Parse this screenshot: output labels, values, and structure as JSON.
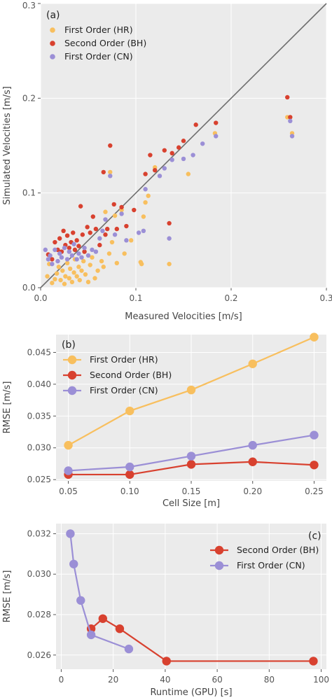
{
  "colors": {
    "hr": "#f8bf5e",
    "bh": "#d8412f",
    "cn": "#9b8fd6",
    "bg": "#ebebeb",
    "grid": "#ffffff",
    "diag": "#6e6e6e"
  },
  "chart_data": [
    {
      "type": "scatter",
      "panel_label": "(a)",
      "xlabel": "Measured Velocities [m/s]",
      "ylabel": "Simulated Velocities [m/s]",
      "xlim": [
        0,
        0.3
      ],
      "ylim": [
        0,
        0.3
      ],
      "xticks": [
        "0.0",
        "0.1",
        "0.2",
        "0.3"
      ],
      "yticks": [
        "0.0",
        "0.1",
        "0.2",
        "0.3"
      ],
      "xtick_values": [
        0,
        0.1,
        0.2,
        0.3
      ],
      "ytick_values": [
        0,
        0.1,
        0.2,
        0.3
      ],
      "reference_line": "y = x",
      "legend_position": "top-left",
      "series": [
        {
          "name": "First Order (HR)",
          "points": [
            [
              0.007,
              0.012
            ],
            [
              0.009,
              0.025
            ],
            [
              0.012,
              0.005
            ],
            [
              0.015,
              0.009
            ],
            [
              0.017,
              0.015
            ],
            [
              0.019,
              0.022
            ],
            [
              0.021,
              0.008
            ],
            [
              0.023,
              0.018
            ],
            [
              0.025,
              0.004
            ],
            [
              0.026,
              0.012
            ],
            [
              0.028,
              0.026
            ],
            [
              0.03,
              0.01
            ],
            [
              0.031,
              0.02
            ],
            [
              0.033,
              0.006
            ],
            [
              0.035,
              0.016
            ],
            [
              0.036,
              0.03
            ],
            [
              0.038,
              0.012
            ],
            [
              0.04,
              0.022
            ],
            [
              0.041,
              0.008
            ],
            [
              0.043,
              0.018
            ],
            [
              0.045,
              0.028
            ],
            [
              0.047,
              0.014
            ],
            [
              0.05,
              0.006
            ],
            [
              0.052,
              0.024
            ],
            [
              0.054,
              0.032
            ],
            [
              0.057,
              0.01
            ],
            [
              0.06,
              0.018
            ],
            [
              0.064,
              0.028
            ],
            [
              0.066,
              0.022
            ],
            [
              0.068,
              0.08
            ],
            [
              0.072,
              0.036
            ],
            [
              0.073,
              0.122
            ],
            [
              0.075,
              0.048
            ],
            [
              0.078,
              0.076
            ],
            [
              0.08,
              0.026
            ],
            [
              0.085,
              0.082
            ],
            [
              0.088,
              0.036
            ],
            [
              0.095,
              0.05
            ],
            [
              0.105,
              0.027
            ],
            [
              0.106,
              0.025
            ],
            [
              0.108,
              0.075
            ],
            [
              0.11,
              0.09
            ],
            [
              0.113,
              0.097
            ],
            [
              0.12,
              0.127
            ],
            [
              0.135,
              0.025
            ],
            [
              0.155,
              0.12
            ],
            [
              0.183,
              0.163
            ],
            [
              0.259,
              0.18
            ],
            [
              0.262,
              0.18
            ],
            [
              0.264,
              0.163
            ]
          ]
        },
        {
          "name": "Second Order (BH)",
          "points": [
            [
              0.008,
              0.035
            ],
            [
              0.012,
              0.03
            ],
            [
              0.015,
              0.048
            ],
            [
              0.018,
              0.04
            ],
            [
              0.02,
              0.052
            ],
            [
              0.022,
              0.038
            ],
            [
              0.024,
              0.06
            ],
            [
              0.026,
              0.045
            ],
            [
              0.028,
              0.055
            ],
            [
              0.03,
              0.042
            ],
            [
              0.032,
              0.048
            ],
            [
              0.034,
              0.058
            ],
            [
              0.036,
              0.04
            ],
            [
              0.038,
              0.05
            ],
            [
              0.04,
              0.044
            ],
            [
              0.042,
              0.086
            ],
            [
              0.044,
              0.056
            ],
            [
              0.046,
              0.038
            ],
            [
              0.049,
              0.064
            ],
            [
              0.052,
              0.058
            ],
            [
              0.055,
              0.075
            ],
            [
              0.058,
              0.062
            ],
            [
              0.062,
              0.045
            ],
            [
              0.066,
              0.122
            ],
            [
              0.068,
              0.056
            ],
            [
              0.07,
              0.062
            ],
            [
              0.073,
              0.15
            ],
            [
              0.077,
              0.088
            ],
            [
              0.08,
              0.062
            ],
            [
              0.085,
              0.085
            ],
            [
              0.09,
              0.065
            ],
            [
              0.098,
              0.082
            ],
            [
              0.11,
              0.12
            ],
            [
              0.115,
              0.14
            ],
            [
              0.12,
              0.124
            ],
            [
              0.13,
              0.145
            ],
            [
              0.135,
              0.068
            ],
            [
              0.138,
              0.142
            ],
            [
              0.145,
              0.148
            ],
            [
              0.15,
              0.155
            ],
            [
              0.163,
              0.172
            ],
            [
              0.184,
              0.174
            ],
            [
              0.259,
              0.201
            ],
            [
              0.262,
              0.18
            ]
          ]
        },
        {
          "name": "First Order (CN)",
          "points": [
            [
              0.005,
              0.04
            ],
            [
              0.008,
              0.03
            ],
            [
              0.01,
              0.034
            ],
            [
              0.012,
              0.025
            ],
            [
              0.015,
              0.04
            ],
            [
              0.018,
              0.028
            ],
            [
              0.02,
              0.036
            ],
            [
              0.022,
              0.032
            ],
            [
              0.025,
              0.042
            ],
            [
              0.028,
              0.03
            ],
            [
              0.03,
              0.038
            ],
            [
              0.033,
              0.034
            ],
            [
              0.035,
              0.046
            ],
            [
              0.038,
              0.03
            ],
            [
              0.04,
              0.036
            ],
            [
              0.043,
              0.032
            ],
            [
              0.046,
              0.042
            ],
            [
              0.05,
              0.034
            ],
            [
              0.054,
              0.04
            ],
            [
              0.058,
              0.038
            ],
            [
              0.062,
              0.052
            ],
            [
              0.065,
              0.06
            ],
            [
              0.068,
              0.072
            ],
            [
              0.073,
              0.118
            ],
            [
              0.078,
              0.056
            ],
            [
              0.085,
              0.078
            ],
            [
              0.09,
              0.05
            ],
            [
              0.103,
              0.058
            ],
            [
              0.108,
              0.06
            ],
            [
              0.11,
              0.104
            ],
            [
              0.125,
              0.118
            ],
            [
              0.13,
              0.126
            ],
            [
              0.135,
              0.052
            ],
            [
              0.138,
              0.135
            ],
            [
              0.15,
              0.136
            ],
            [
              0.16,
              0.14
            ],
            [
              0.17,
              0.152
            ],
            [
              0.184,
              0.16
            ],
            [
              0.262,
              0.176
            ],
            [
              0.264,
              0.16
            ]
          ]
        }
      ]
    },
    {
      "type": "line",
      "panel_label": "(b)",
      "xlabel": "Cell Size [m]",
      "ylabel": "RMSE [m/s]",
      "xlim": [
        0.04,
        0.26
      ],
      "ylim": [
        0.0248,
        0.0478
      ],
      "xticks": [
        "0.05",
        "0.10",
        "0.15",
        "0.20",
        "0.25"
      ],
      "yticks": [
        "0.025",
        "0.030",
        "0.035",
        "0.040",
        "0.045"
      ],
      "xtick_values": [
        0.05,
        0.1,
        0.15,
        0.2,
        0.25
      ],
      "ytick_values": [
        0.025,
        0.03,
        0.035,
        0.04,
        0.045
      ],
      "legend_position": "top-left",
      "x": [
        0.05,
        0.1,
        0.15,
        0.2,
        0.25
      ],
      "series": [
        {
          "name": "First Order (HR)",
          "values": [
            0.0304,
            0.0358,
            0.0391,
            0.0432,
            0.0474
          ]
        },
        {
          "name": "Second Order (BH)",
          "values": [
            0.0258,
            0.0258,
            0.0274,
            0.0278,
            0.0273
          ]
        },
        {
          "name": "First Order (CN)",
          "values": [
            0.0264,
            0.027,
            0.0287,
            0.0304,
            0.032
          ]
        }
      ]
    },
    {
      "type": "line",
      "panel_label": "(c)",
      "xlabel": "Runtime (GPU) [s]",
      "ylabel": "RMSE [m/s]",
      "xlim": [
        -2,
        102
      ],
      "ylim": [
        0.0253,
        0.0325
      ],
      "xticks": [
        "0",
        "20",
        "40",
        "60",
        "80",
        "100"
      ],
      "yticks": [
        "0.026",
        "0.028",
        "0.030",
        "0.032"
      ],
      "xtick_values": [
        0,
        20,
        40,
        60,
        80,
        100
      ],
      "ytick_values": [
        0.026,
        0.028,
        0.03,
        0.032
      ],
      "legend_position": "top-right",
      "series": [
        {
          "name": "Second Order (BH)",
          "x": [
            11.5,
            16,
            22.5,
            40.5,
            97
          ],
          "values": [
            0.0273,
            0.0278,
            0.0273,
            0.0257,
            0.0257
          ]
        },
        {
          "name": "First Order (CN)",
          "x": [
            3.5,
            4.8,
            7.5,
            11.5,
            26
          ],
          "values": [
            0.032,
            0.0305,
            0.0287,
            0.027,
            0.0263
          ]
        }
      ]
    }
  ]
}
